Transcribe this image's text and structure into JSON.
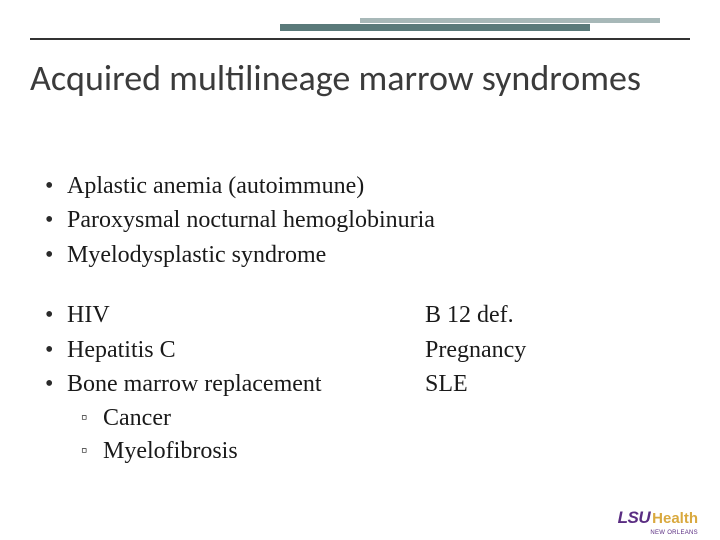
{
  "colors": {
    "deco_light": "#a7b8b8",
    "deco_dark": "#5a7a7a",
    "rule": "#333333",
    "title": "#3b3b3b",
    "body": "#1a1a1a",
    "logo_purple": "#5a2d82",
    "logo_gold": "#d9a93f",
    "background": "#ffffff"
  },
  "title": "Acquired multilineage marrow syndromes",
  "group1": [
    "Aplastic anemia (autoimmune)",
    "Paroxysmal nocturnal hemoglobinuria",
    "Myelodysplastic syndrome"
  ],
  "group2_left": [
    "HIV",
    "Hepatitis C",
    "Bone marrow replacement"
  ],
  "group2_right": [
    "B 12 def.",
    "Pregnancy",
    "SLE"
  ],
  "sub_bullets": [
    "Cancer",
    "Myelofibrosis"
  ],
  "logo": {
    "lsu": "LSU",
    "health": "Health",
    "sub": "NEW ORLEANS"
  }
}
